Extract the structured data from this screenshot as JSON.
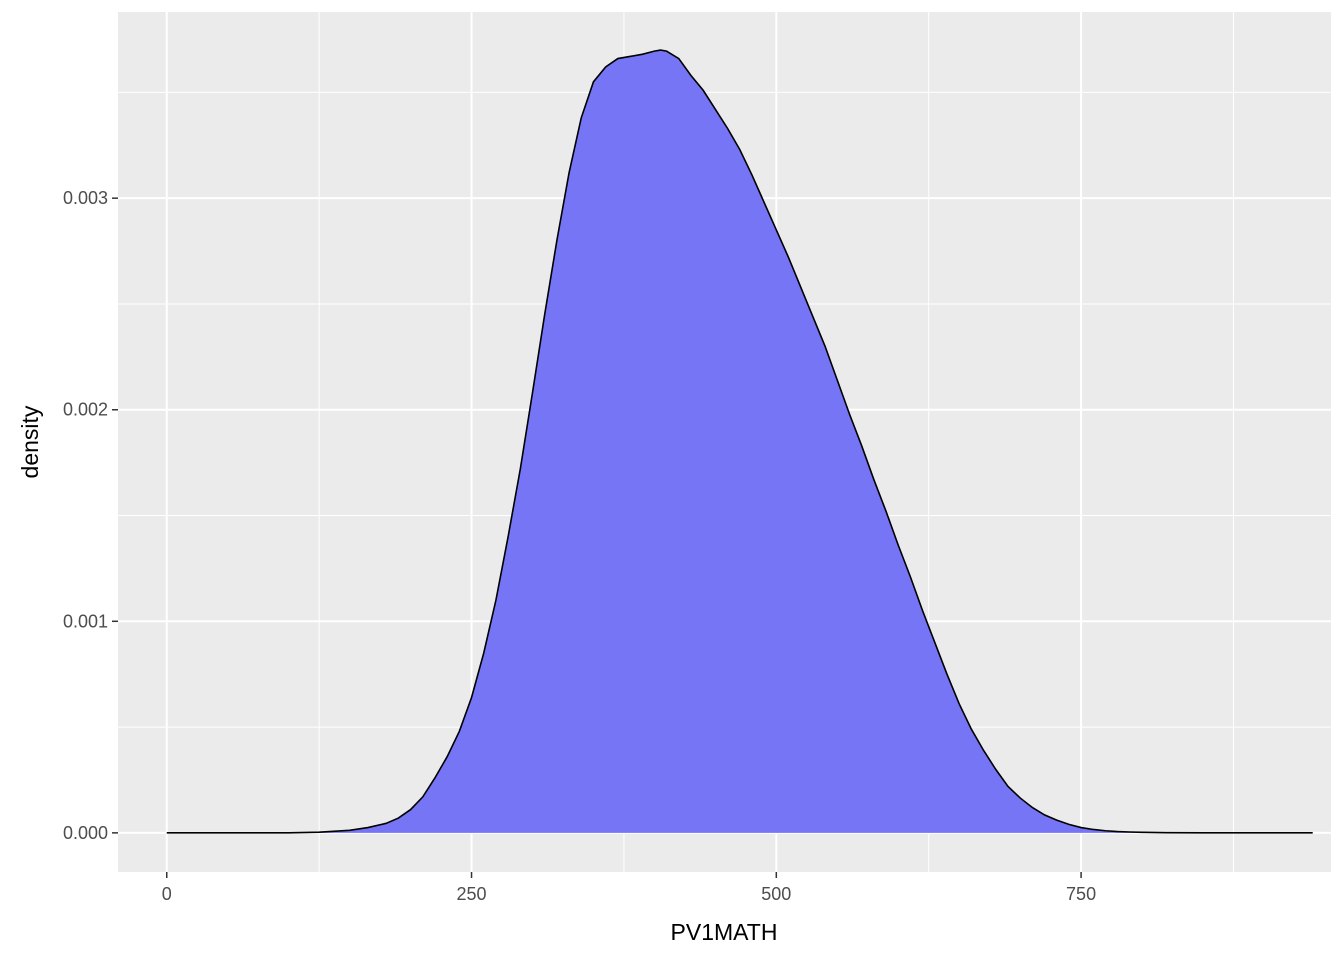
{
  "chart_data": {
    "type": "area",
    "xlabel": "PV1MATH",
    "ylabel": "density",
    "xlim": [
      -40,
      955
    ],
    "ylim": [
      -0.000185,
      0.00388
    ],
    "x_ticks": [
      0,
      250,
      500,
      750
    ],
    "x_tick_labels": [
      "0",
      "250",
      "500",
      "750"
    ],
    "y_ticks": [
      0.0,
      0.001,
      0.002,
      0.003
    ],
    "y_tick_labels": [
      "0.000",
      "0.001",
      "0.002",
      "0.003"
    ],
    "grid": true,
    "fill_color": "#7575f5",
    "line_color": "#000000",
    "panel_color": "#ebebeb",
    "grid_color": "#ffffff",
    "series": [
      {
        "x": [
          0,
          50,
          100,
          125,
          150,
          165,
          180,
          190,
          200,
          210,
          220,
          230,
          240,
          250,
          260,
          270,
          280,
          290,
          300,
          310,
          320,
          330,
          340,
          350,
          360,
          370,
          380,
          390,
          400,
          405,
          410,
          420,
          430,
          440,
          450,
          460,
          470,
          480,
          490,
          500,
          510,
          520,
          530,
          540,
          550,
          560,
          570,
          580,
          590,
          600,
          610,
          620,
          630,
          640,
          650,
          660,
          670,
          680,
          690,
          700,
          710,
          720,
          730,
          740,
          750,
          760,
          770,
          780,
          790,
          800,
          820,
          850,
          900,
          940
        ],
        "y": [
          0.0,
          0.0,
          0.0,
          3e-06,
          1.2e-05,
          2.5e-05,
          4.5e-05,
          7e-05,
          0.00011,
          0.00017,
          0.00026,
          0.00036,
          0.00048,
          0.00064,
          0.00085,
          0.0011,
          0.0014,
          0.00172,
          0.00208,
          0.00245,
          0.0028,
          0.00312,
          0.00338,
          0.00355,
          0.00362,
          0.00366,
          0.00367,
          0.00368,
          0.003695,
          0.0037,
          0.003695,
          0.00366,
          0.00358,
          0.00351,
          0.00342,
          0.00333,
          0.00323,
          0.00311,
          0.00298,
          0.00285,
          0.00272,
          0.00258,
          0.00244,
          0.0023,
          0.00214,
          0.00198,
          0.00183,
          0.00167,
          0.00152,
          0.00136,
          0.00121,
          0.00105,
          0.0009,
          0.00075,
          0.00061,
          0.00049,
          0.00039,
          0.0003,
          0.00022,
          0.000165,
          0.00012,
          8.5e-05,
          6e-05,
          4e-05,
          2.5e-05,
          1.6e-05,
          1e-05,
          6e-06,
          4e-06,
          2.5e-06,
          1e-06,
          3e-07,
          0.0,
          0.0
        ]
      }
    ]
  }
}
